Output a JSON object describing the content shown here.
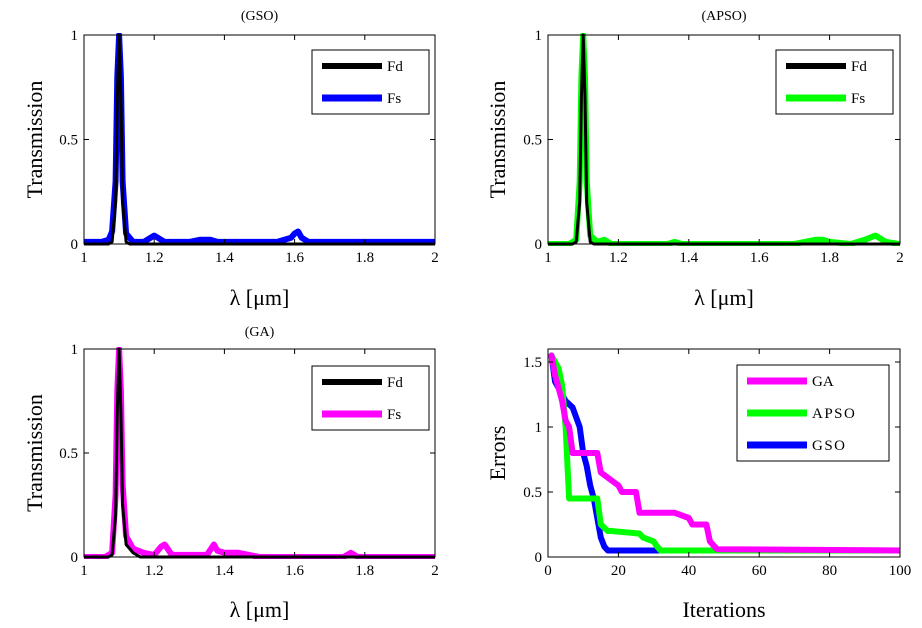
{
  "figure": {
    "colors": {
      "Fd": "#000000",
      "GSO": "#0000ff",
      "APSO": "#00ff00",
      "GA": "#ff00ff",
      "axes": "#000000",
      "background": "#ffffff"
    }
  },
  "chart_data": [
    {
      "type": "line",
      "title": "(GSO)",
      "xlabel": "λ [μm]",
      "ylabel": "Transmission",
      "xlim": [
        1,
        2
      ],
      "ylim": [
        0,
        1
      ],
      "xticks": [
        "1",
        "1.2",
        "1.4",
        "1.6",
        "1.8",
        "2"
      ],
      "yticks": [
        "0",
        "0.5",
        "1"
      ],
      "legend": {
        "position": "top-right",
        "entries": [
          "Fd",
          "Fs"
        ]
      },
      "grid": false,
      "series": [
        {
          "name": "Fd",
          "color": "#000000",
          "x": [
            1,
            1.07,
            1.08,
            1.09,
            1.095,
            1.1,
            1.105,
            1.11,
            1.12,
            1.13,
            2
          ],
          "y": [
            0,
            0,
            0.01,
            0.2,
            0.7,
            1.0,
            0.7,
            0.2,
            0.01,
            0,
            0
          ]
        },
        {
          "name": "Fs",
          "color": "#0000ff",
          "x": [
            1,
            1.05,
            1.07,
            1.08,
            1.09,
            1.095,
            1.1,
            1.105,
            1.11,
            1.12,
            1.14,
            1.17,
            1.19,
            1.2,
            1.21,
            1.23,
            1.3,
            1.33,
            1.36,
            1.38,
            1.55,
            1.59,
            1.6,
            1.61,
            1.62,
            1.64,
            2
          ],
          "y": [
            0.01,
            0.01,
            0.02,
            0.06,
            0.3,
            0.8,
            1.0,
            0.8,
            0.3,
            0.05,
            0.01,
            0.01,
            0.03,
            0.04,
            0.03,
            0.01,
            0.01,
            0.02,
            0.02,
            0.01,
            0.01,
            0.03,
            0.05,
            0.06,
            0.03,
            0.01,
            0.01
          ]
        }
      ]
    },
    {
      "type": "line",
      "title": "(APSO)",
      "xlabel": "λ [μm]",
      "ylabel": "Transmission",
      "xlim": [
        1,
        2
      ],
      "ylim": [
        0,
        1
      ],
      "xticks": [
        "1",
        "1.2",
        "1.4",
        "1.6",
        "1.8",
        "2"
      ],
      "yticks": [
        "0",
        "0.5",
        "1"
      ],
      "legend": {
        "position": "top-right",
        "entries": [
          "Fd",
          "Fs"
        ]
      },
      "grid": false,
      "series": [
        {
          "name": "Fd",
          "color": "#000000",
          "x": [
            1,
            1.07,
            1.08,
            1.09,
            1.095,
            1.1,
            1.105,
            1.11,
            1.12,
            1.13,
            2
          ],
          "y": [
            0,
            0,
            0.01,
            0.2,
            0.7,
            1.0,
            0.7,
            0.2,
            0.01,
            0,
            0
          ]
        },
        {
          "name": "Fs",
          "color": "#00ff00",
          "x": [
            1,
            1.06,
            1.08,
            1.09,
            1.095,
            1.1,
            1.105,
            1.11,
            1.12,
            1.14,
            1.16,
            1.18,
            1.34,
            1.36,
            1.38,
            1.7,
            1.76,
            1.78,
            1.8,
            1.86,
            1.9,
            1.93,
            1.96,
            2
          ],
          "y": [
            0,
            0,
            0.02,
            0.3,
            0.8,
            1.0,
            0.8,
            0.3,
            0.04,
            0.01,
            0.02,
            0.0,
            0.0,
            0.01,
            0.0,
            0.0,
            0.02,
            0.02,
            0.01,
            0.0,
            0.02,
            0.04,
            0.01,
            0.0
          ]
        }
      ]
    },
    {
      "type": "line",
      "title": "(GA)",
      "xlabel": "λ [μm]",
      "ylabel": "Transmission",
      "xlim": [
        1,
        2
      ],
      "ylim": [
        0,
        1
      ],
      "xticks": [
        "1",
        "1.2",
        "1.4",
        "1.6",
        "1.8",
        "2"
      ],
      "yticks": [
        "0",
        "0.5",
        "1"
      ],
      "legend": {
        "position": "top-right",
        "entries": [
          "Fd",
          "Fs"
        ]
      },
      "grid": false,
      "series": [
        {
          "name": "Fd",
          "color": "#000000",
          "x": [
            1,
            1.07,
            1.08,
            1.09,
            1.095,
            1.1,
            1.105,
            1.11,
            1.12,
            1.14,
            1.16,
            2
          ],
          "y": [
            0,
            0,
            0.01,
            0.2,
            0.7,
            1.0,
            0.7,
            0.25,
            0.06,
            0.02,
            0,
            0
          ]
        },
        {
          "name": "Fs",
          "color": "#ff00ff",
          "x": [
            1,
            1.06,
            1.08,
            1.09,
            1.095,
            1.1,
            1.105,
            1.11,
            1.12,
            1.14,
            1.17,
            1.2,
            1.22,
            1.23,
            1.25,
            1.35,
            1.37,
            1.38,
            1.4,
            1.44,
            1.5,
            1.74,
            1.76,
            1.78,
            2
          ],
          "y": [
            0,
            0,
            0.02,
            0.3,
            0.8,
            1.0,
            0.8,
            0.35,
            0.1,
            0.04,
            0.02,
            0.01,
            0.05,
            0.06,
            0.01,
            0.01,
            0.06,
            0.03,
            0.02,
            0.02,
            0.0,
            0.0,
            0.02,
            0.0,
            0.0
          ]
        }
      ]
    },
    {
      "type": "line",
      "title": "",
      "xlabel": "Iterations",
      "ylabel": "Errors",
      "xlim": [
        0,
        100
      ],
      "ylim": [
        0,
        1.6
      ],
      "xticks": [
        "0",
        "20",
        "40",
        "60",
        "80",
        "100"
      ],
      "yticks": [
        "0",
        "0.5",
        "1",
        "1.5"
      ],
      "legend": {
        "position": "top-right",
        "entries": [
          "GA",
          "APSO",
          "GSO"
        ]
      },
      "grid": false,
      "series": [
        {
          "name": "GA",
          "color": "#ff00ff",
          "x": [
            1,
            2,
            3,
            4,
            5,
            6,
            7,
            9,
            14,
            15,
            20,
            21,
            25,
            26,
            36,
            40,
            41,
            45,
            46,
            48,
            100
          ],
          "y": [
            1.55,
            1.4,
            1.3,
            1.2,
            1.05,
            1.0,
            0.8,
            0.8,
            0.8,
            0.65,
            0.55,
            0.5,
            0.5,
            0.34,
            0.34,
            0.3,
            0.25,
            0.25,
            0.12,
            0.06,
            0.05
          ]
        },
        {
          "name": "APSO",
          "color": "#00ff00",
          "x": [
            1,
            3,
            4,
            5,
            6,
            7,
            8,
            10,
            11,
            14,
            15,
            17,
            18,
            26,
            27,
            30,
            31,
            32,
            100
          ],
          "y": [
            1.55,
            1.45,
            1.32,
            1.0,
            0.45,
            0.45,
            0.45,
            0.45,
            0.45,
            0.45,
            0.25,
            0.2,
            0.2,
            0.18,
            0.15,
            0.12,
            0.08,
            0.05,
            0.05
          ]
        },
        {
          "name": "GSO",
          "color": "#0000ff",
          "x": [
            1,
            2,
            3,
            4,
            5,
            7,
            9,
            10,
            11,
            12,
            13,
            14,
            15,
            16,
            17,
            100
          ],
          "y": [
            1.55,
            1.35,
            1.3,
            1.25,
            1.2,
            1.15,
            1.0,
            0.8,
            0.7,
            0.55,
            0.45,
            0.3,
            0.15,
            0.08,
            0.05,
            0.05
          ]
        }
      ]
    }
  ]
}
